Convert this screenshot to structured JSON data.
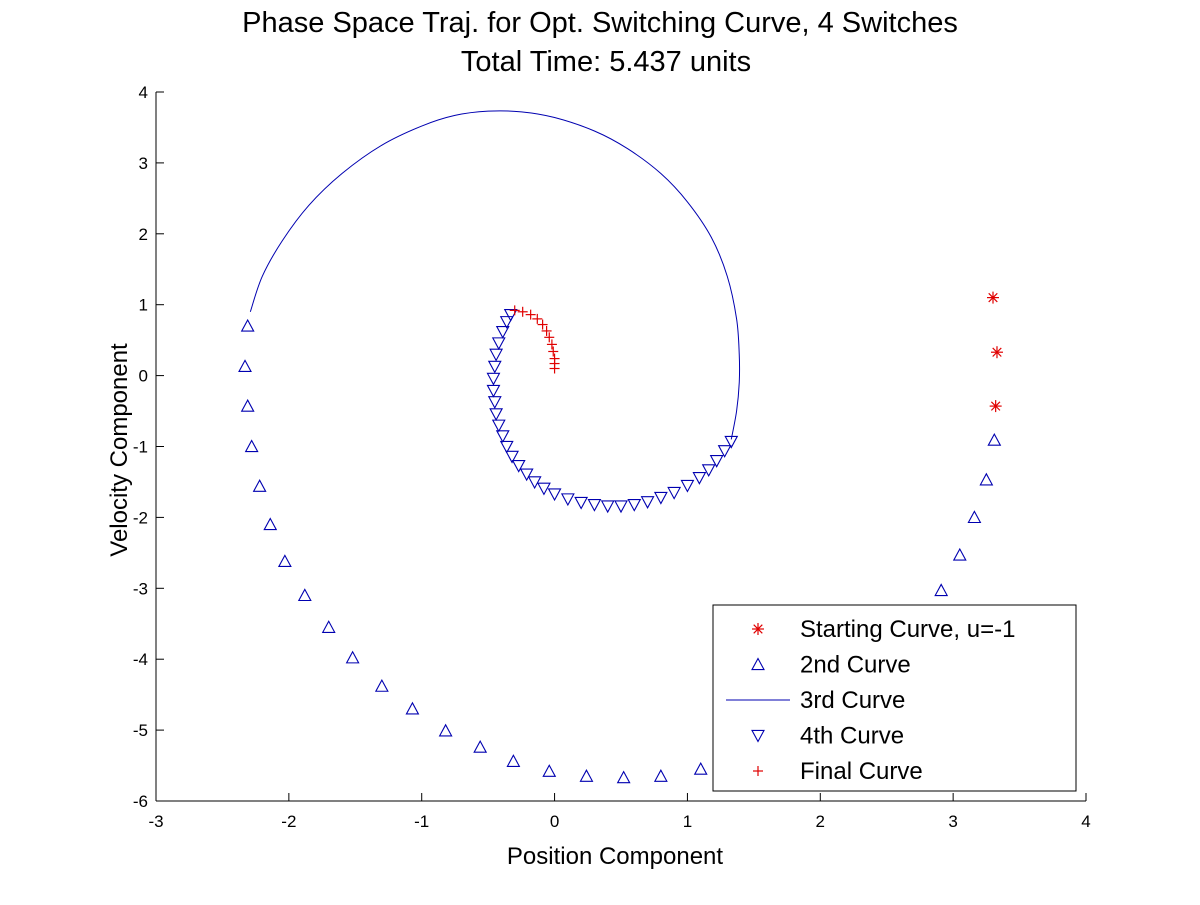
{
  "colors": {
    "red": "#e00000",
    "blue": "#0000b0",
    "axis": "#000000",
    "background": "#ffffff"
  },
  "chart_data": {
    "type": "scatter",
    "title": "Phase Space Traj. for Opt. Switching Curve, 4 Switches",
    "subtitle": "Total Time:  5.437 units",
    "xlabel": "Position Component",
    "ylabel": "Velocity Component",
    "xlim": [
      -3,
      4
    ],
    "ylim": [
      -6,
      4
    ],
    "xticks": [
      -3,
      -2,
      -1,
      0,
      1,
      2,
      3,
      4
    ],
    "yticks": [
      -6,
      -5,
      -4,
      -3,
      -2,
      -1,
      0,
      1,
      2,
      3,
      4
    ],
    "grid": false,
    "legend_position": "bottom-right",
    "series": [
      {
        "name": "Starting Curve, u=-1",
        "marker": "asterisk",
        "color": "#e00000",
        "points": [
          [
            3.3,
            1.1
          ],
          [
            3.33,
            0.33
          ],
          [
            3.32,
            -0.43
          ]
        ]
      },
      {
        "name": "2nd Curve",
        "marker": "triangle-up",
        "color": "#0000b0",
        "points": [
          [
            3.31,
            -0.91
          ],
          [
            3.25,
            -1.47
          ],
          [
            3.16,
            -2.0
          ],
          [
            3.05,
            -2.53
          ],
          [
            2.91,
            -3.03
          ],
          [
            1.1,
            -5.55
          ],
          [
            0.8,
            -5.65
          ],
          [
            0.52,
            -5.67
          ],
          [
            0.24,
            -5.65
          ],
          [
            -0.04,
            -5.58
          ],
          [
            -0.31,
            -5.44
          ],
          [
            -0.56,
            -5.24
          ],
          [
            -0.82,
            -5.01
          ],
          [
            -1.07,
            -4.7
          ],
          [
            -1.3,
            -4.38
          ],
          [
            -1.52,
            -3.98
          ],
          [
            -1.7,
            -3.55
          ],
          [
            -1.88,
            -3.1
          ],
          [
            -2.03,
            -2.62
          ],
          [
            -2.14,
            -2.1
          ],
          [
            -2.22,
            -1.56
          ],
          [
            -2.28,
            -1.0
          ],
          [
            -2.31,
            -0.43
          ],
          [
            -2.33,
            0.13
          ],
          [
            -2.31,
            0.7
          ]
        ]
      },
      {
        "name": "3rd Curve",
        "marker": "line",
        "color": "#0000b0",
        "points": [
          [
            -2.29,
            0.9
          ],
          [
            -2.2,
            1.4
          ],
          [
            -2.05,
            1.9
          ],
          [
            -1.85,
            2.4
          ],
          [
            -1.6,
            2.85
          ],
          [
            -1.3,
            3.25
          ],
          [
            -1.0,
            3.52
          ],
          [
            -0.75,
            3.67
          ],
          [
            -0.5,
            3.73
          ],
          [
            -0.25,
            3.72
          ],
          [
            0.0,
            3.64
          ],
          [
            0.3,
            3.45
          ],
          [
            0.55,
            3.2
          ],
          [
            0.8,
            2.85
          ],
          [
            1.0,
            2.45
          ],
          [
            1.18,
            1.95
          ],
          [
            1.3,
            1.4
          ],
          [
            1.37,
            0.8
          ],
          [
            1.39,
            0.3
          ],
          [
            1.39,
            -0.1
          ],
          [
            1.37,
            -0.5
          ],
          [
            1.33,
            -0.9
          ]
        ]
      },
      {
        "name": "4th Curve",
        "marker": "triangle-down",
        "color": "#0000b0",
        "points": [
          [
            1.33,
            -0.93
          ],
          [
            1.28,
            -1.06
          ],
          [
            1.22,
            -1.2
          ],
          [
            1.16,
            -1.33
          ],
          [
            1.09,
            -1.44
          ],
          [
            1.0,
            -1.55
          ],
          [
            0.9,
            -1.65
          ],
          [
            0.8,
            -1.72
          ],
          [
            0.7,
            -1.78
          ],
          [
            0.6,
            -1.82
          ],
          [
            0.5,
            -1.84
          ],
          [
            0.4,
            -1.84
          ],
          [
            0.3,
            -1.82
          ],
          [
            0.2,
            -1.79
          ],
          [
            0.1,
            -1.74
          ],
          [
            0.0,
            -1.67
          ],
          [
            -0.08,
            -1.59
          ],
          [
            -0.15,
            -1.5
          ],
          [
            -0.21,
            -1.39
          ],
          [
            -0.27,
            -1.27
          ],
          [
            -0.32,
            -1.14
          ],
          [
            -0.36,
            -1.0
          ],
          [
            -0.39,
            -0.85
          ],
          [
            -0.42,
            -0.7
          ],
          [
            -0.44,
            -0.54
          ],
          [
            -0.45,
            -0.37
          ],
          [
            -0.46,
            -0.21
          ],
          [
            -0.46,
            -0.04
          ],
          [
            -0.45,
            0.13
          ],
          [
            -0.44,
            0.3
          ],
          [
            -0.42,
            0.46
          ],
          [
            -0.39,
            0.62
          ],
          [
            -0.36,
            0.76
          ],
          [
            -0.33,
            0.86
          ]
        ]
      },
      {
        "name": "Final Curve",
        "marker": "plus",
        "color": "#e00000",
        "points": [
          [
            -0.3,
            0.92
          ],
          [
            -0.24,
            0.9
          ],
          [
            -0.18,
            0.86
          ],
          [
            -0.13,
            0.8
          ],
          [
            -0.09,
            0.72
          ],
          [
            -0.06,
            0.63
          ],
          [
            -0.04,
            0.54
          ],
          [
            -0.02,
            0.44
          ],
          [
            -0.01,
            0.34
          ],
          [
            0.0,
            0.24
          ],
          [
            0.0,
            0.17
          ],
          [
            0.0,
            0.1
          ]
        ]
      }
    ]
  }
}
